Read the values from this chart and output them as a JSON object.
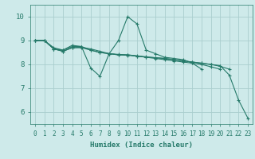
{
  "xlabel": "Humidex (Indice chaleur)",
  "background_color": "#ceeaea",
  "grid_color": "#aacece",
  "line_color": "#267a6a",
  "xlim": [
    -0.5,
    23.5
  ],
  "ylim": [
    5.5,
    10.5
  ],
  "yticks": [
    6,
    7,
    8,
    9,
    10
  ],
  "xtick_labels": [
    "0",
    "1",
    "2",
    "3",
    "4",
    "5",
    "6",
    "7",
    "8",
    "9",
    "10",
    "11",
    "12",
    "13",
    "14",
    "15",
    "16",
    "17",
    "18",
    "19",
    "20",
    "21",
    "22",
    "23"
  ],
  "lines": [
    {
      "x": [
        0,
        1,
        2,
        3,
        4,
        5,
        6,
        7,
        8,
        9,
        10,
        11,
        12,
        13,
        14,
        15,
        16,
        17,
        18
      ],
      "y": [
        9.0,
        9.0,
        8.7,
        8.6,
        8.75,
        8.75,
        7.85,
        7.5,
        8.45,
        9.0,
        10.0,
        9.7,
        8.6,
        8.45,
        8.3,
        8.25,
        8.2,
        8.05,
        7.8
      ]
    },
    {
      "x": [
        0,
        1,
        2,
        3,
        4,
        5,
        6,
        7,
        8,
        9,
        10,
        11,
        12,
        13,
        14,
        15,
        16,
        17,
        18,
        19,
        20
      ],
      "y": [
        9.0,
        9.0,
        8.65,
        8.55,
        8.7,
        8.7,
        8.6,
        8.5,
        8.45,
        8.4,
        8.4,
        8.35,
        8.3,
        8.25,
        8.2,
        8.15,
        8.1,
        8.05,
        8.0,
        7.9,
        7.8
      ]
    },
    {
      "x": [
        0,
        1,
        2,
        3,
        4,
        5,
        6,
        7,
        8,
        9,
        10,
        11,
        12,
        13,
        14,
        15,
        16,
        17,
        18,
        19,
        20,
        21
      ],
      "y": [
        9.0,
        9.0,
        8.65,
        8.55,
        8.7,
        8.72,
        8.65,
        8.55,
        8.45,
        8.4,
        8.38,
        8.35,
        8.3,
        8.28,
        8.25,
        8.2,
        8.15,
        8.1,
        8.05,
        8.0,
        7.92,
        7.8
      ]
    },
    {
      "x": [
        0,
        1,
        2,
        3,
        4,
        5,
        6,
        7,
        8,
        9,
        10,
        11,
        12,
        13,
        14,
        15,
        16,
        17,
        18,
        19,
        20,
        21,
        22,
        23
      ],
      "y": [
        9.0,
        9.0,
        8.65,
        8.6,
        8.8,
        8.75,
        8.6,
        8.5,
        8.45,
        8.42,
        8.4,
        8.36,
        8.32,
        8.28,
        8.25,
        8.2,
        8.15,
        8.1,
        8.05,
        8.0,
        7.95,
        7.55,
        6.5,
        5.75
      ]
    }
  ]
}
